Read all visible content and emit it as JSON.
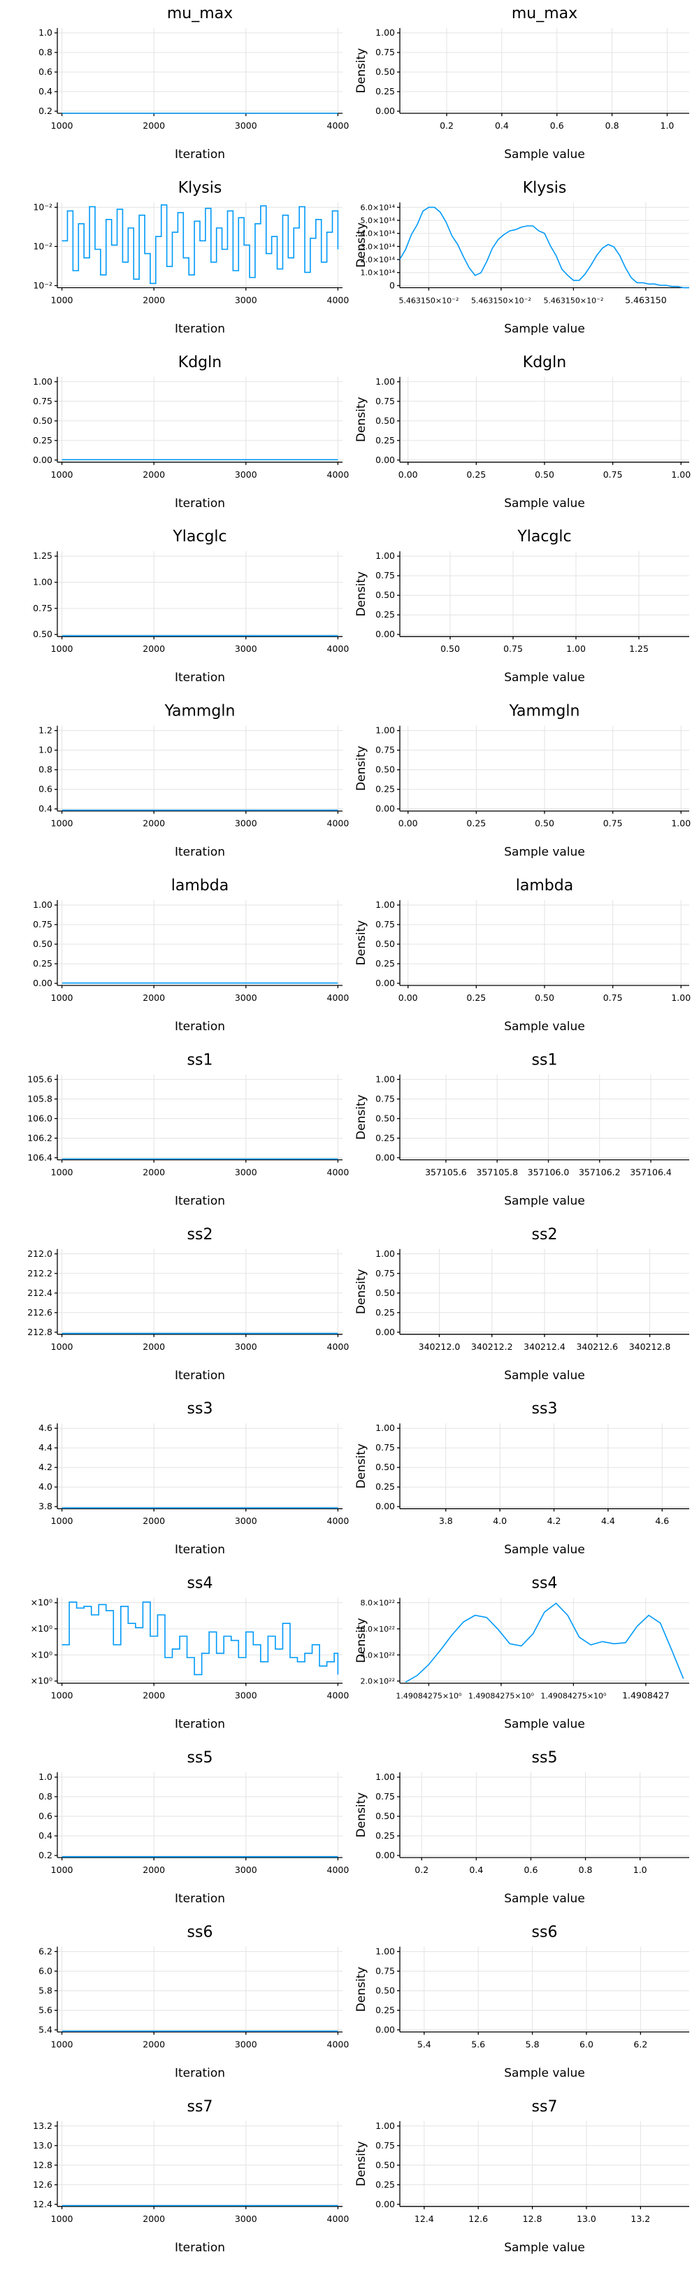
{
  "chart_data": [
    {
      "panel": "traceplot",
      "param": "mu_max",
      "type": "line",
      "title": "mu_max",
      "xlabel": "Iteration",
      "ylabel": "",
      "xticks": [
        "1000",
        "2000",
        "3000",
        "4000"
      ],
      "yticks": [
        "0.2",
        "0.4",
        "0.6",
        "0.8",
        "1.0"
      ],
      "xlim": [
        950,
        4050
      ],
      "ylim": [
        0.02,
        1.1
      ],
      "grid": true,
      "x": [
        1001,
        4000
      ],
      "y": [
        0.02,
        0.02
      ]
    },
    {
      "panel": "density",
      "param": "mu_max",
      "type": "line",
      "title": "mu_max",
      "xlabel": "Sample value",
      "ylabel": "Density",
      "xticks": [
        "0.2",
        "0.4",
        "0.6",
        "0.8",
        "1.0"
      ],
      "yticks": [
        "0.00",
        "0.25",
        "0.50",
        "0.75",
        "1.00"
      ],
      "xlim": [
        0.03,
        1.08
      ],
      "ylim": [
        -0.03,
        1.03
      ],
      "grid": true,
      "x": [],
      "y": []
    },
    {
      "panel": "traceplot",
      "param": "Klysis",
      "type": "line",
      "title": "Klysis",
      "xlabel": "Iteration",
      "ylabel": "",
      "xticks": [
        "1000",
        "2000",
        "3000",
        "4000"
      ],
      "yticks": [
        "10⁻²",
        "10⁻²",
        "10⁻²"
      ],
      "xlim": [
        950,
        4050
      ],
      "ylim": [
        0,
        1
      ],
      "grid": true,
      "x": [
        1000,
        1060,
        1120,
        1180,
        1240,
        1300,
        1360,
        1420,
        1480,
        1540,
        1600,
        1660,
        1720,
        1780,
        1840,
        1900,
        1960,
        2020,
        2080,
        2140,
        2200,
        2260,
        2320,
        2380,
        2440,
        2500,
        2560,
        2620,
        2680,
        2740,
        2800,
        2860,
        2920,
        2980,
        3040,
        3100,
        3160,
        3220,
        3280,
        3340,
        3400,
        3460,
        3520,
        3580,
        3640,
        3700,
        3760,
        3820,
        3880,
        3940,
        4000
      ],
      "y": [
        0.55,
        0.9,
        0.2,
        0.75,
        0.35,
        0.95,
        0.45,
        0.15,
        0.8,
        0.5,
        0.92,
        0.3,
        0.7,
        0.1,
        0.85,
        0.4,
        0.05,
        0.6,
        0.97,
        0.25,
        0.65,
        0.88,
        0.35,
        0.15,
        0.78,
        0.55,
        0.93,
        0.3,
        0.7,
        0.45,
        0.9,
        0.2,
        0.82,
        0.5,
        0.12,
        0.75,
        0.96,
        0.4,
        0.6,
        0.22,
        0.85,
        0.35,
        0.7,
        0.95,
        0.18,
        0.58,
        0.8,
        0.3,
        0.65,
        0.9,
        0.45
      ]
    },
    {
      "panel": "density",
      "param": "Klysis",
      "type": "line",
      "title": "Klysis",
      "xlabel": "Sample value",
      "ylabel": "Density",
      "xticks": [
        "5.463150×10⁻²",
        "5.463150×10⁻²",
        "5.463150×10⁻²",
        "5.463150"
      ],
      "yticks": [
        "0",
        "1.0×10¹⁴",
        "2.0×10¹⁴",
        "3.0×10¹⁴",
        "4.0×10¹⁴",
        "5.0×10¹⁴",
        "6.0×10¹⁴"
      ],
      "xlim": [
        0,
        1
      ],
      "ylim": [
        0,
        6.9
      ],
      "grid": true,
      "x": [
        0.0,
        0.02,
        0.04,
        0.06,
        0.08,
        0.1,
        0.12,
        0.14,
        0.16,
        0.18,
        0.2,
        0.22,
        0.24,
        0.26,
        0.28,
        0.3,
        0.32,
        0.34,
        0.36,
        0.38,
        0.4,
        0.42,
        0.44,
        0.46,
        0.48,
        0.5,
        0.52,
        0.54,
        0.56,
        0.58,
        0.6,
        0.62,
        0.64,
        0.66,
        0.68,
        0.7,
        0.72,
        0.74,
        0.76,
        0.78,
        0.8,
        0.82,
        0.84,
        0.86,
        0.88,
        0.9,
        0.92,
        0.94,
        0.96,
        0.98,
        1.0
      ],
      "y": [
        2.3,
        3.1,
        4.3,
        5.1,
        6.2,
        6.5,
        6.5,
        6.1,
        5.3,
        4.2,
        3.5,
        2.5,
        1.6,
        1.0,
        1.2,
        2.1,
        3.2,
        3.9,
        4.3,
        4.6,
        4.7,
        4.9,
        5.0,
        5.0,
        4.6,
        4.4,
        3.4,
        2.6,
        1.5,
        1.0,
        0.6,
        0.6,
        1.1,
        1.8,
        2.6,
        3.2,
        3.5,
        3.3,
        2.6,
        1.6,
        0.8,
        0.4,
        0.4,
        0.3,
        0.3,
        0.2,
        0.2,
        0.1,
        0.1,
        0.0,
        0.0
      ]
    },
    {
      "panel": "traceplot",
      "param": "Kdgln",
      "type": "line",
      "title": "Kdgln",
      "xlabel": "Iteration",
      "ylabel": "",
      "xticks": [
        "1000",
        "2000",
        "3000",
        "4000"
      ],
      "yticks": [
        "0.00",
        "0.25",
        "0.50",
        "0.75",
        "1.00"
      ],
      "xlim": [
        950,
        4050
      ],
      "ylim": [
        -0.03,
        1.03
      ],
      "grid": true,
      "x": [
        1001,
        4000
      ],
      "y": [
        0.0,
        0.0
      ]
    },
    {
      "panel": "density",
      "param": "Kdgln",
      "type": "line",
      "title": "Kdgln",
      "xlabel": "Sample value",
      "ylabel": "Density",
      "xticks": [
        "0.00",
        "0.25",
        "0.50",
        "0.75",
        "1.00"
      ],
      "yticks": [
        "0.00",
        "0.25",
        "0.50",
        "0.75",
        "1.00"
      ],
      "xlim": [
        -0.03,
        1.03
      ],
      "ylim": [
        -0.03,
        1.03
      ],
      "grid": true,
      "x": [],
      "y": []
    },
    {
      "panel": "traceplot",
      "param": "Ylacglc",
      "type": "line",
      "title": "Ylacglc",
      "xlabel": "Iteration",
      "ylabel": "",
      "xticks": [
        "1000",
        "2000",
        "3000",
        "4000"
      ],
      "yticks": [
        "0.50",
        "0.75",
        "1.00",
        "1.25"
      ],
      "xlim": [
        950,
        4050
      ],
      "ylim": [
        0.39,
        1.42
      ],
      "grid": true,
      "x": [
        1001,
        4000
      ],
      "y": [
        0.4,
        0.4
      ]
    },
    {
      "panel": "density",
      "param": "Ylacglc",
      "type": "line",
      "title": "Ylacglc",
      "xlabel": "Sample value",
      "ylabel": "Density",
      "xticks": [
        "0.50",
        "0.75",
        "1.00",
        "1.25"
      ],
      "yticks": [
        "0.00",
        "0.25",
        "0.50",
        "0.75",
        "1.00"
      ],
      "xlim": [
        0.3,
        1.45
      ],
      "ylim": [
        -0.03,
        1.03
      ],
      "grid": true,
      "x": [],
      "y": []
    },
    {
      "panel": "traceplot",
      "param": "Yammgln",
      "type": "line",
      "title": "Yammgln",
      "xlabel": "Iteration",
      "ylabel": "",
      "xticks": [
        "1000",
        "2000",
        "3000",
        "4000"
      ],
      "yticks": [
        "0.4",
        "0.6",
        "0.8",
        "1.0",
        "1.2"
      ],
      "xlim": [
        950,
        4050
      ],
      "ylim": [
        0.29,
        1.32
      ],
      "grid": true,
      "x": [
        1001,
        4000
      ],
      "y": [
        0.3,
        0.3
      ]
    },
    {
      "panel": "density",
      "param": "Yammgln",
      "type": "line",
      "title": "Yammgln",
      "xlabel": "Sample value",
      "ylabel": "Density",
      "xticks": [
        "0.00",
        "0.25",
        "0.50",
        "0.75",
        "1.00"
      ],
      "yticks": [
        "0.00",
        "0.25",
        "0.50",
        "0.75",
        "1.00"
      ],
      "xlim": [
        -0.03,
        1.03
      ],
      "ylim": [
        -0.03,
        1.03
      ],
      "grid": true,
      "x": [],
      "y": []
    },
    {
      "panel": "traceplot",
      "param": "lambda",
      "type": "line",
      "title": "lambda",
      "xlabel": "Iteration",
      "ylabel": "",
      "xticks": [
        "1000",
        "2000",
        "3000",
        "4000"
      ],
      "yticks": [
        "0.00",
        "0.25",
        "0.50",
        "0.75",
        "1.00"
      ],
      "xlim": [
        950,
        4050
      ],
      "ylim": [
        -0.03,
        1.03
      ],
      "grid": true,
      "x": [
        1001,
        4000
      ],
      "y": [
        0.0,
        0.0
      ]
    },
    {
      "panel": "density",
      "param": "lambda",
      "type": "line",
      "title": "lambda",
      "xlabel": "Sample value",
      "ylabel": "Density",
      "xticks": [
        "0.00",
        "0.25",
        "0.50",
        "0.75",
        "1.00"
      ],
      "yticks": [
        "0.00",
        "0.25",
        "0.50",
        "0.75",
        "1.00"
      ],
      "xlim": [
        -0.03,
        1.03
      ],
      "ylim": [
        -0.03,
        1.03
      ],
      "grid": true,
      "x": [],
      "y": []
    },
    {
      "panel": "traceplot",
      "param": "ss1",
      "type": "line",
      "title": "ss1",
      "xlabel": "Iteration",
      "ylabel": "",
      "xticks": [
        "1000",
        "2000",
        "3000",
        "4000"
      ],
      "yticks": [
        "106.4",
        "106.2",
        "106.0",
        "105.8",
        "105.6"
      ],
      "xlim": [
        950,
        4050
      ],
      "ylim": [
        0,
        1
      ],
      "grid": true,
      "x": [
        1001,
        4000
      ],
      "y": [
        0.01,
        0.01
      ]
    },
    {
      "panel": "density",
      "param": "ss1",
      "type": "line",
      "title": "ss1",
      "xlabel": "Sample value",
      "ylabel": "Density",
      "xticks": [
        "357105.6",
        "357105.8",
        "357106.0",
        "357106.2",
        "357106.4"
      ],
      "yticks": [
        "0.00",
        "0.25",
        "0.50",
        "0.75",
        "1.00"
      ],
      "xlim": [
        357105.42,
        357106.55
      ],
      "ylim": [
        -0.03,
        1.03
      ],
      "grid": true,
      "x": [],
      "y": []
    },
    {
      "panel": "traceplot",
      "param": "ss2",
      "type": "line",
      "title": "ss2",
      "xlabel": "Iteration",
      "ylabel": "",
      "xticks": [
        "1000",
        "2000",
        "3000",
        "4000"
      ],
      "yticks": [
        "212.8",
        "212.6",
        "212.4",
        "212.2",
        "212.0"
      ],
      "xlim": [
        950,
        4050
      ],
      "ylim": [
        0,
        1
      ],
      "grid": true,
      "x": [
        1001,
        4000
      ],
      "y": [
        0.01,
        0.01
      ]
    },
    {
      "panel": "density",
      "param": "ss2",
      "type": "line",
      "title": "ss2",
      "xlabel": "Sample value",
      "ylabel": "Density",
      "xticks": [
        "340212.0",
        "340212.2",
        "340212.4",
        "340212.6",
        "340212.8"
      ],
      "yticks": [
        "0.00",
        "0.25",
        "0.50",
        "0.75",
        "1.00"
      ],
      "xlim": [
        340211.85,
        340212.95
      ],
      "ylim": [
        -0.03,
        1.03
      ],
      "grid": true,
      "x": [],
      "y": []
    },
    {
      "panel": "traceplot",
      "param": "ss3",
      "type": "line",
      "title": "ss3",
      "xlabel": "Iteration",
      "ylabel": "",
      "xticks": [
        "1000",
        "2000",
        "3000",
        "4000"
      ],
      "yticks": [
        "3.8",
        "4.0",
        "4.2",
        "4.4",
        "4.6"
      ],
      "xlim": [
        950,
        4050
      ],
      "ylim": [
        3.65,
        4.68
      ],
      "grid": true,
      "x": [
        1001,
        4000
      ],
      "y": [
        3.66,
        3.66
      ]
    },
    {
      "panel": "density",
      "param": "ss3",
      "type": "line",
      "title": "ss3",
      "xlabel": "Sample value",
      "ylabel": "Density",
      "xticks": [
        "3.8",
        "4.0",
        "4.2",
        "4.4",
        "4.6"
      ],
      "yticks": [
        "0.00",
        "0.25",
        "0.50",
        "0.75",
        "1.00"
      ],
      "xlim": [
        3.63,
        4.7
      ],
      "ylim": [
        -0.03,
        1.03
      ],
      "grid": true,
      "x": [],
      "y": []
    },
    {
      "panel": "traceplot",
      "param": "ss4",
      "type": "line",
      "title": "ss4",
      "xlabel": "Iteration",
      "ylabel": "",
      "xticks": [
        "1000",
        "2000",
        "3000",
        "4000"
      ],
      "yticks": [
        "×10⁰",
        "×10⁰",
        "×10⁰",
        "×10⁰"
      ],
      "xlim": [
        950,
        4050
      ],
      "ylim": [
        0,
        1
      ],
      "grid": true,
      "x": [
        1000,
        1080,
        1160,
        1240,
        1320,
        1400,
        1480,
        1560,
        1640,
        1720,
        1800,
        1880,
        1960,
        2040,
        2120,
        2200,
        2280,
        2360,
        2440,
        2520,
        2600,
        2680,
        2760,
        2840,
        2920,
        3000,
        3080,
        3160,
        3240,
        3320,
        3400,
        3480,
        3560,
        3640,
        3720,
        3800,
        3880,
        3960,
        4000
      ],
      "y": [
        0.45,
        0.95,
        0.88,
        0.9,
        0.8,
        0.92,
        0.85,
        0.45,
        0.9,
        0.7,
        0.65,
        0.95,
        0.55,
        0.8,
        0.3,
        0.4,
        0.55,
        0.3,
        0.1,
        0.35,
        0.6,
        0.35,
        0.55,
        0.5,
        0.3,
        0.6,
        0.45,
        0.25,
        0.55,
        0.4,
        0.7,
        0.3,
        0.25,
        0.35,
        0.45,
        0.2,
        0.25,
        0.35,
        0.1
      ]
    },
    {
      "panel": "density",
      "param": "ss4",
      "type": "line",
      "title": "ss4",
      "xlabel": "Sample value",
      "ylabel": "Density",
      "xticks": [
        "1.49084275×10⁰",
        "1.49084275×10⁰",
        "1.49084275×10⁰",
        "1.4908427"
      ],
      "yticks": [
        "2.0×10²²",
        "4.0×10²²",
        "6.0×10²²",
        "8.0×10²²"
      ],
      "xlim": [
        0,
        1
      ],
      "ylim": [
        1.8,
        9.6
      ],
      "grid": true,
      "x": [
        0.02,
        0.06,
        0.1,
        0.14,
        0.18,
        0.22,
        0.26,
        0.3,
        0.34,
        0.38,
        0.42,
        0.46,
        0.5,
        0.54,
        0.58,
        0.62,
        0.66,
        0.7,
        0.74,
        0.78,
        0.82,
        0.86,
        0.9,
        0.94,
        0.98
      ],
      "y": [
        1.9,
        2.5,
        3.5,
        4.8,
        6.2,
        7.4,
        8.0,
        7.8,
        6.7,
        5.4,
        5.2,
        6.3,
        8.3,
        9.1,
        8.0,
        6.0,
        5.3,
        5.6,
        5.4,
        5.5,
        7.0,
        8.0,
        7.3,
        4.8,
        2.2
      ]
    },
    {
      "panel": "traceplot",
      "param": "ss5",
      "type": "line",
      "title": "ss5",
      "xlabel": "Iteration",
      "ylabel": "",
      "xticks": [
        "1000",
        "2000",
        "3000",
        "4000"
      ],
      "yticks": [
        "0.2",
        "0.4",
        "0.6",
        "0.8",
        "1.0"
      ],
      "xlim": [
        950,
        4050
      ],
      "ylim": [
        0.14,
        1.17
      ],
      "grid": true,
      "x": [
        1001,
        4000
      ],
      "y": [
        0.15,
        0.15
      ]
    },
    {
      "panel": "density",
      "param": "ss5",
      "type": "line",
      "title": "ss5",
      "xlabel": "Sample value",
      "ylabel": "Density",
      "xticks": [
        "0.2",
        "0.4",
        "0.6",
        "0.8",
        "1.0"
      ],
      "yticks": [
        "0.00",
        "0.25",
        "0.50",
        "0.75",
        "1.00"
      ],
      "xlim": [
        0.12,
        1.18
      ],
      "ylim": [
        -0.03,
        1.03
      ],
      "grid": true,
      "x": [],
      "y": []
    },
    {
      "panel": "traceplot",
      "param": "ss6",
      "type": "line",
      "title": "ss6",
      "xlabel": "Iteration",
      "ylabel": "",
      "xticks": [
        "1000",
        "2000",
        "3000",
        "4000"
      ],
      "yticks": [
        "5.4",
        "5.6",
        "5.8",
        "6.0",
        "6.2"
      ],
      "xlim": [
        950,
        4050
      ],
      "ylim": [
        5.33,
        6.36
      ],
      "grid": true,
      "x": [
        1001,
        4000
      ],
      "y": [
        5.34,
        5.34
      ]
    },
    {
      "panel": "density",
      "param": "ss6",
      "type": "line",
      "title": "ss6",
      "xlabel": "Sample value",
      "ylabel": "Density",
      "xticks": [
        "5.4",
        "5.6",
        "5.8",
        "6.0",
        "6.2"
      ],
      "yticks": [
        "0.00",
        "0.25",
        "0.50",
        "0.75",
        "1.00"
      ],
      "xlim": [
        5.31,
        6.38
      ],
      "ylim": [
        -0.03,
        1.03
      ],
      "grid": true,
      "x": [],
      "y": []
    },
    {
      "panel": "traceplot",
      "param": "ss7",
      "type": "line",
      "title": "ss7",
      "xlabel": "Iteration",
      "ylabel": "",
      "xticks": [
        "1000",
        "2000",
        "3000",
        "4000"
      ],
      "yticks": [
        "12.4",
        "12.6",
        "12.8",
        "13.0",
        "13.2"
      ],
      "xlim": [
        950,
        4050
      ],
      "ylim": [
        12.33,
        13.36
      ],
      "grid": true,
      "x": [
        1001,
        4000
      ],
      "y": [
        12.34,
        12.34
      ]
    },
    {
      "panel": "density",
      "param": "ss7",
      "type": "line",
      "title": "ss7",
      "xlabel": "Sample value",
      "ylabel": "Density",
      "xticks": [
        "12.4",
        "12.6",
        "12.8",
        "13.0",
        "13.2"
      ],
      "yticks": [
        "0.00",
        "0.25",
        "0.50",
        "0.75",
        "1.00"
      ],
      "xlim": [
        12.31,
        13.38
      ],
      "ylim": [
        -0.03,
        1.03
      ],
      "grid": true,
      "x": [],
      "y": []
    }
  ],
  "style": {
    "series_color": "#009af9",
    "grid_color": "#e3e3e3",
    "axis_color": "#000000"
  }
}
